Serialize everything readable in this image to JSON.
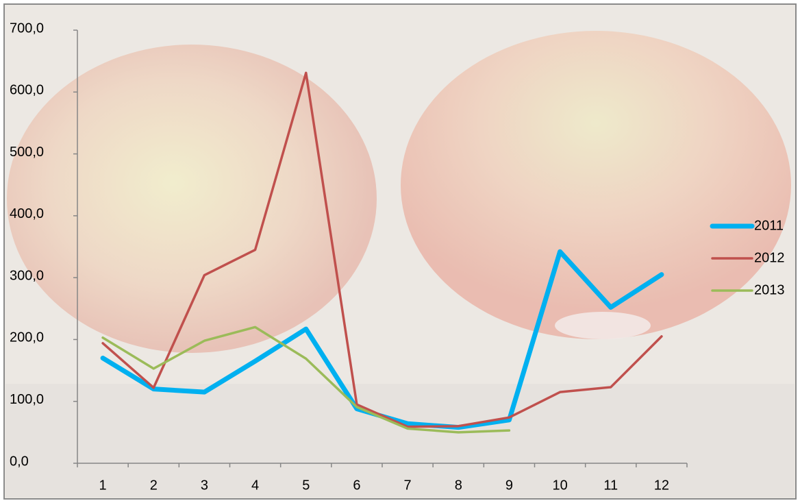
{
  "chart_data": {
    "type": "line",
    "categories": [
      "1",
      "2",
      "3",
      "4",
      "5",
      "6",
      "7",
      "8",
      "9",
      "10",
      "11",
      "12"
    ],
    "series": [
      {
        "name": "2011",
        "color": "#00b0f0",
        "values": [
          170,
          120,
          115,
          165,
          217,
          88,
          64,
          58,
          70,
          342,
          252,
          305
        ]
      },
      {
        "name": "2012",
        "color": "#c0504d",
        "values": [
          194,
          122,
          304,
          345,
          631,
          95,
          59,
          60,
          74,
          115,
          123,
          205
        ]
      },
      {
        "name": "2013",
        "color": "#9bbb59",
        "values": [
          203,
          153,
          198,
          220,
          169,
          91,
          56,
          50,
          53,
          null,
          null,
          null
        ]
      }
    ],
    "ylim": [
      0,
      700
    ],
    "yticks": [
      {
        "value": 0,
        "label": "0,0"
      },
      {
        "value": 100,
        "label": "100,0"
      },
      {
        "value": 200,
        "label": "200,0"
      },
      {
        "value": 300,
        "label": "300,0"
      },
      {
        "value": 400,
        "label": "400,0"
      },
      {
        "value": 500,
        "label": "500,0"
      },
      {
        "value": 600,
        "label": "600,0"
      },
      {
        "value": 700,
        "label": "700,0"
      }
    ],
    "legend": "right"
  }
}
